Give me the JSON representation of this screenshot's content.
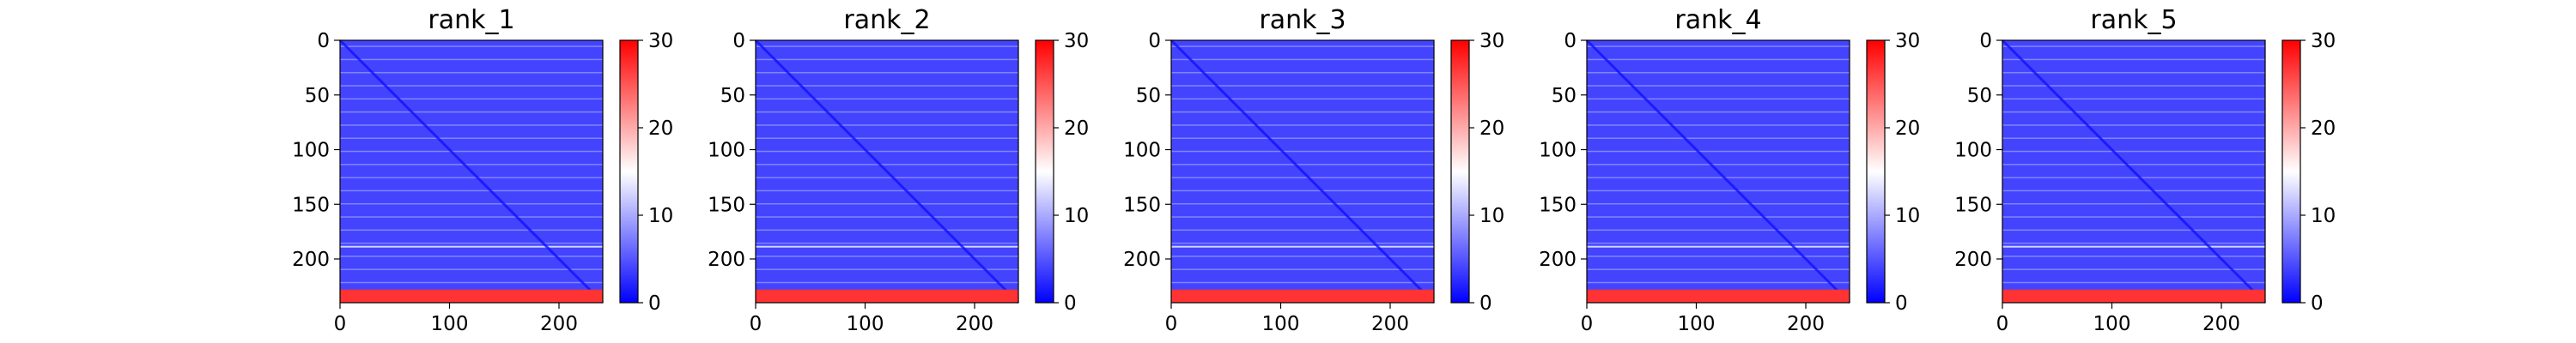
{
  "chart_data": [
    {
      "type": "heatmap",
      "title": "rank_1",
      "xlim": [
        0,
        240
      ],
      "ylim": [
        240,
        0
      ],
      "xticks": [
        0,
        100,
        200
      ],
      "yticks": [
        0,
        50,
        100,
        150,
        200
      ],
      "colorbar": {
        "range": [
          0,
          30
        ],
        "ticks": [
          0,
          10,
          20,
          30
        ],
        "colors": [
          "#0000ff",
          "#ffffff",
          "#ff0000"
        ]
      },
      "values_description_free": true,
      "background_value": 4,
      "diagonal_value": 1,
      "high_band": {
        "y_range": [
          228,
          240
        ],
        "value": 27
      }
    },
    {
      "type": "heatmap",
      "title": "rank_2",
      "xlim": [
        0,
        240
      ],
      "ylim": [
        240,
        0
      ],
      "xticks": [
        0,
        100,
        200
      ],
      "yticks": [
        0,
        50,
        100,
        150,
        200
      ],
      "colorbar": {
        "range": [
          0,
          30
        ],
        "ticks": [
          0,
          10,
          20,
          30
        ],
        "colors": [
          "#0000ff",
          "#ffffff",
          "#ff0000"
        ]
      },
      "values_description_free": true,
      "background_value": 4,
      "diagonal_value": 1,
      "high_band": {
        "y_range": [
          228,
          240
        ],
        "value": 27
      }
    },
    {
      "type": "heatmap",
      "title": "rank_3",
      "xlim": [
        0,
        240
      ],
      "ylim": [
        240,
        0
      ],
      "xticks": [
        0,
        100,
        200
      ],
      "yticks": [
        0,
        50,
        100,
        150,
        200
      ],
      "colorbar": {
        "range": [
          0,
          30
        ],
        "ticks": [
          0,
          10,
          20,
          30
        ],
        "colors": [
          "#0000ff",
          "#ffffff",
          "#ff0000"
        ]
      },
      "values_description_free": true,
      "background_value": 4,
      "diagonal_value": 1,
      "high_band": {
        "y_range": [
          228,
          240
        ],
        "value": 27
      }
    },
    {
      "type": "heatmap",
      "title": "rank_4",
      "xlim": [
        0,
        240
      ],
      "ylim": [
        240,
        0
      ],
      "xticks": [
        0,
        100,
        200
      ],
      "yticks": [
        0,
        50,
        100,
        150,
        200
      ],
      "colorbar": {
        "range": [
          0,
          30
        ],
        "ticks": [
          0,
          10,
          20,
          30
        ],
        "colors": [
          "#0000ff",
          "#ffffff",
          "#ff0000"
        ]
      },
      "values_description_free": true,
      "background_value": 4,
      "diagonal_value": 1,
      "high_band": {
        "y_range": [
          228,
          240
        ],
        "value": 27
      }
    },
    {
      "type": "heatmap",
      "title": "rank_5",
      "xlim": [
        0,
        240
      ],
      "ylim": [
        240,
        0
      ],
      "xticks": [
        0,
        100,
        200
      ],
      "yticks": [
        0,
        50,
        100,
        150,
        200
      ],
      "colorbar": {
        "range": [
          0,
          30
        ],
        "ticks": [
          0,
          10,
          20,
          30
        ],
        "colors": [
          "#0000ff",
          "#ffffff",
          "#ff0000"
        ]
      },
      "values_description_free": true,
      "background_value": 4,
      "diagonal_value": 1,
      "high_band": {
        "y_range": [
          228,
          240
        ],
        "value": 27
      }
    }
  ]
}
